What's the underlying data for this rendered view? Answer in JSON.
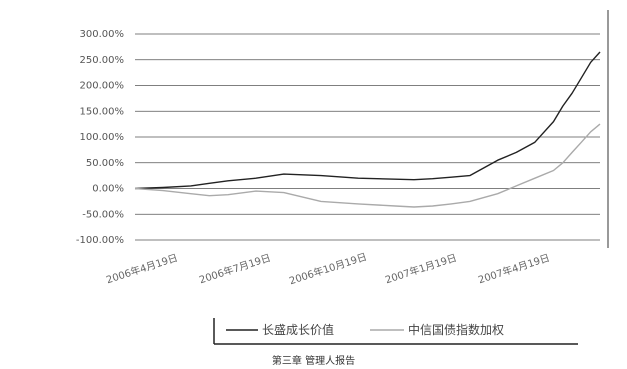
{
  "chart_data": {
    "type": "line",
    "title": "",
    "xlabel": "",
    "ylabel": "",
    "y_tick_labels": [
      "300.00%",
      "250.00%",
      "200.00%",
      "150.00%",
      "100.00%",
      "50.00%",
      "0.00%",
      "-50.00%",
      "-100.00%"
    ],
    "ylim": [
      -100,
      300
    ],
    "x_tick_labels": [
      "2006年4月19日",
      "2006年7月19日",
      "2006年10月19日",
      "2007年1月19日",
      "2007年4月19日"
    ],
    "x_tick_index": [
      0,
      1,
      2,
      3,
      4
    ],
    "grid": "horizontal",
    "legend_position": "bottom",
    "series": [
      {
        "name": "长盛成长价值",
        "color": "#222222",
        "x": [
          0,
          0.3,
          0.6,
          0.8,
          1.0,
          1.3,
          1.6,
          2.0,
          2.4,
          2.8,
          3.0,
          3.2,
          3.4,
          3.6,
          3.9,
          4.1,
          4.3,
          4.5,
          4.6,
          4.7,
          4.8,
          4.9,
          5.0
        ],
        "values": [
          0,
          2,
          5,
          10,
          15,
          20,
          28,
          25,
          20,
          18,
          17,
          19,
          22,
          25,
          55,
          70,
          90,
          130,
          160,
          185,
          215,
          245,
          265
        ]
      },
      {
        "name": "中信国债指数加权",
        "color": "#aaaaaa",
        "x": [
          0,
          0.3,
          0.6,
          0.8,
          1.0,
          1.3,
          1.6,
          2.0,
          2.4,
          2.8,
          3.0,
          3.2,
          3.4,
          3.6,
          3.9,
          4.1,
          4.3,
          4.5,
          4.6,
          4.7,
          4.8,
          4.9,
          5.0
        ],
        "values": [
          0,
          -4,
          -10,
          -14,
          -12,
          -5,
          -8,
          -25,
          -30,
          -34,
          -36,
          -34,
          -30,
          -25,
          -10,
          5,
          20,
          35,
          50,
          70,
          90,
          110,
          125
        ]
      }
    ]
  },
  "caption": "第三章 管理人报告"
}
